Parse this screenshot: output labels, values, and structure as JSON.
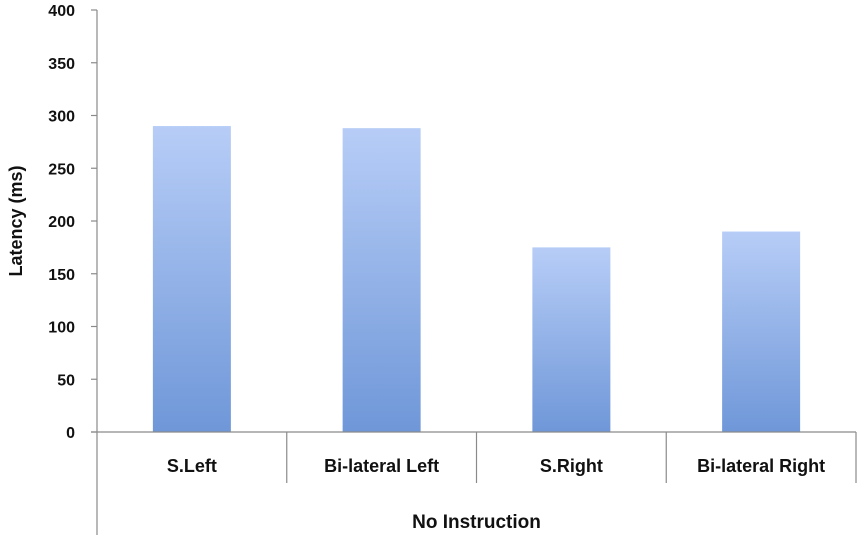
{
  "chart_data": {
    "type": "bar",
    "categories": [
      "S.Left",
      "Bi-lateral Left",
      "S.Right",
      "Bi-lateral Right"
    ],
    "values": [
      290,
      288,
      175,
      190
    ],
    "group_label": "No Instruction",
    "xlabel": "",
    "ylabel": "Latency (ms)",
    "ylim": [
      0,
      400
    ],
    "yticks": [
      0,
      50,
      100,
      150,
      200,
      250,
      300,
      350,
      400
    ],
    "grid": false,
    "legend": "none",
    "colors": {
      "bar_top": "#b7cdf7",
      "bar_bottom": "#6f97d8",
      "axis": "#8a8a8a",
      "text": "#111111"
    }
  }
}
